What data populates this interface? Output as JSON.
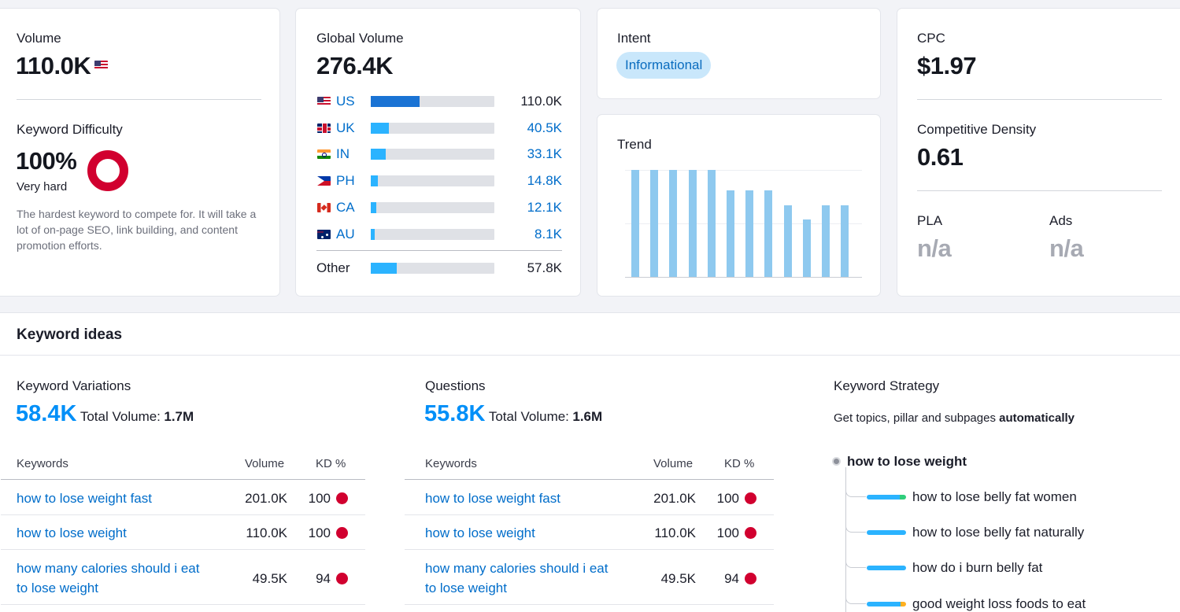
{
  "volume": {
    "label": "Volume",
    "value": "110.0K",
    "flag": "us-flag-icon"
  },
  "difficulty": {
    "label": "Keyword Difficulty",
    "value": "100%",
    "level": "Very hard",
    "description": "The hardest keyword to compete for. It will take a lot of on-page SEO, link building, and content promotion efforts.",
    "color": "#d1002f"
  },
  "global": {
    "label": "Global Volume",
    "value": "276.4K",
    "countries": [
      {
        "code": "US",
        "value": "110.0K",
        "share": 0.39
      },
      {
        "code": "UK",
        "value": "40.5K",
        "share": 0.15
      },
      {
        "code": "IN",
        "value": "33.1K",
        "share": 0.12
      },
      {
        "code": "PH",
        "value": "14.8K",
        "share": 0.06
      },
      {
        "code": "CA",
        "value": "12.1K",
        "share": 0.04
      },
      {
        "code": "AU",
        "value": "8.1K",
        "share": 0.03
      }
    ],
    "other": {
      "label": "Other",
      "value": "57.8K",
      "share": 0.21
    }
  },
  "intent": {
    "label": "Intent",
    "badge": "Informational"
  },
  "trend": {
    "label": "Trend",
    "values": [
      1.0,
      1.0,
      1.0,
      1.0,
      1.0,
      0.81,
      0.81,
      0.81,
      0.67,
      0.54,
      0.67,
      0.67
    ]
  },
  "cpc": {
    "label": "CPC",
    "value": "$1.97",
    "density_label": "Competitive Density",
    "density_value": "0.61",
    "pla_label": "PLA",
    "pla_value": "n/a",
    "ads_label": "Ads",
    "ads_value": "n/a"
  },
  "ideas": {
    "title": "Keyword ideas",
    "variations": {
      "title": "Keyword Variations",
      "count": "58.4K",
      "total_label": "Total Volume:",
      "total_value": "1.7M",
      "columns": [
        "Keywords",
        "Volume",
        "KD %"
      ],
      "rows": [
        {
          "keyword": "how to lose weight fast",
          "volume": "201.0K",
          "kd": "100"
        },
        {
          "keyword": "how to lose weight",
          "volume": "110.0K",
          "kd": "100"
        },
        {
          "keyword_line1": "how many calories should i eat",
          "keyword_line2": "to lose weight",
          "volume": "49.5K",
          "kd": "94"
        }
      ]
    },
    "questions": {
      "title": "Questions",
      "count": "55.8K",
      "total_label": "Total Volume:",
      "total_value": "1.6M",
      "columns": [
        "Keywords",
        "Volume",
        "KD %"
      ],
      "rows": [
        {
          "keyword": "how to lose weight fast",
          "volume": "201.0K",
          "kd": "100"
        },
        {
          "keyword": "how to lose weight",
          "volume": "110.0K",
          "kd": "100"
        },
        {
          "keyword_line1": "how many calories should i eat",
          "keyword_line2": "to lose weight",
          "volume": "49.5K",
          "kd": "94"
        }
      ]
    },
    "strategy": {
      "title": "Keyword Strategy",
      "subtitle_pre": "Get topics, pillar and subpages",
      "subtitle_bold": "automatically",
      "root": "how to lose weight",
      "items": [
        "how to lose belly fat women",
        "how to lose belly fat naturally",
        "how do i burn belly fat",
        "good weight loss foods to eat"
      ]
    }
  }
}
